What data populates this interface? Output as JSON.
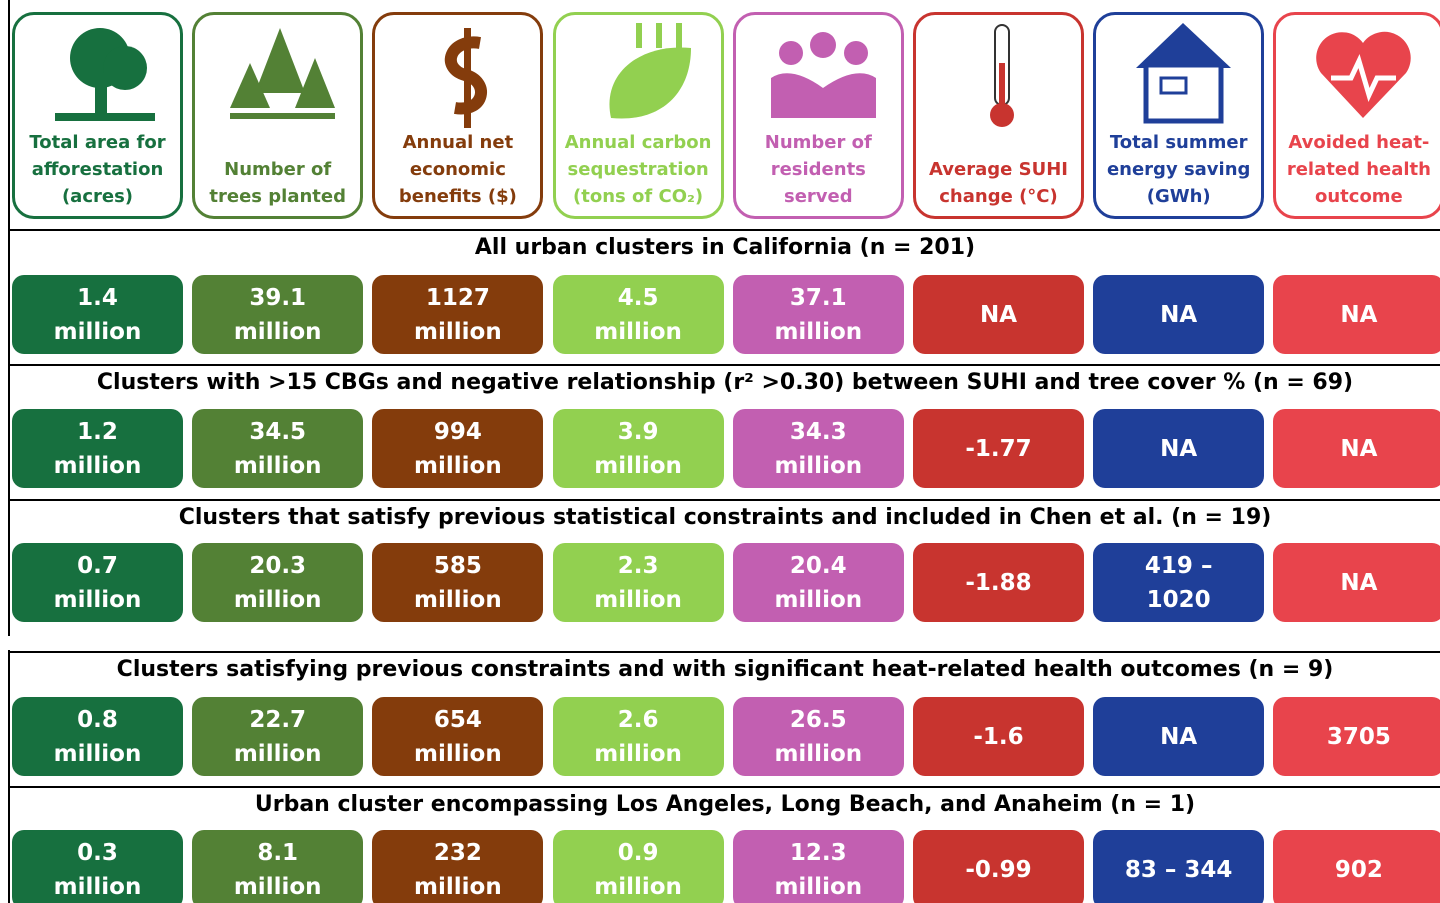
{
  "columns": [
    {
      "label": "Total area for afforestation (acres)",
      "color": "#17703f"
    },
    {
      "label": "Number of trees planted",
      "color": "#538135"
    },
    {
      "label": "Annual net economic benefits ($)",
      "color": "#843c0c"
    },
    {
      "label": "Annual carbon sequestration (tons of CO₂)",
      "color": "#92d050"
    },
    {
      "label": "Number of residents served",
      "color": "#c25fb1"
    },
    {
      "label": "Average SUHI change (°C)",
      "color": "#c8342f"
    },
    {
      "label": "Total summer energy saving (GWh)",
      "color": "#1f3f99"
    },
    {
      "label": "Avoided heat-related health outcome",
      "color": "#e8444c"
    }
  ],
  "sections": [
    {
      "title": "All urban clusters in California (n = 201)",
      "values": [
        "1.4 million",
        "39.1 million",
        "1127 million",
        "4.5 million",
        "37.1 million",
        "NA",
        "NA",
        "NA"
      ]
    },
    {
      "title": "Clusters with >15 CBGs and negative relationship (r² >0.30) between SUHI and tree cover % (n = 69)",
      "values": [
        "1.2 million",
        "34.5 million",
        "994 million",
        "3.9 million",
        "34.3 million",
        "-1.77",
        "NA",
        "NA"
      ]
    },
    {
      "title": "Clusters that satisfy previous statistical constraints and included in Chen et al. (n = 19)",
      "values": [
        "0.7 million",
        "20.3 million",
        "585 million",
        "2.3 million",
        "20.4 million",
        "-1.88",
        "419 – 1020",
        "NA"
      ]
    },
    {
      "title": "Clusters satisfying previous constraints and with significant heat-related health outcomes (n = 9)",
      "values": [
        "0.8 million",
        "22.7 million",
        "654 million",
        "2.6 million",
        "26.5 million",
        "-1.6",
        "NA",
        "3705"
      ]
    },
    {
      "title": "Urban cluster encompassing Los Angeles, Long Beach, and Anaheim (n = 1)",
      "values": [
        "0.3 million",
        "8.1 million",
        "232 million",
        "0.9 million",
        "12.3 million",
        "-0.99",
        "83 – 344",
        "902"
      ]
    }
  ]
}
